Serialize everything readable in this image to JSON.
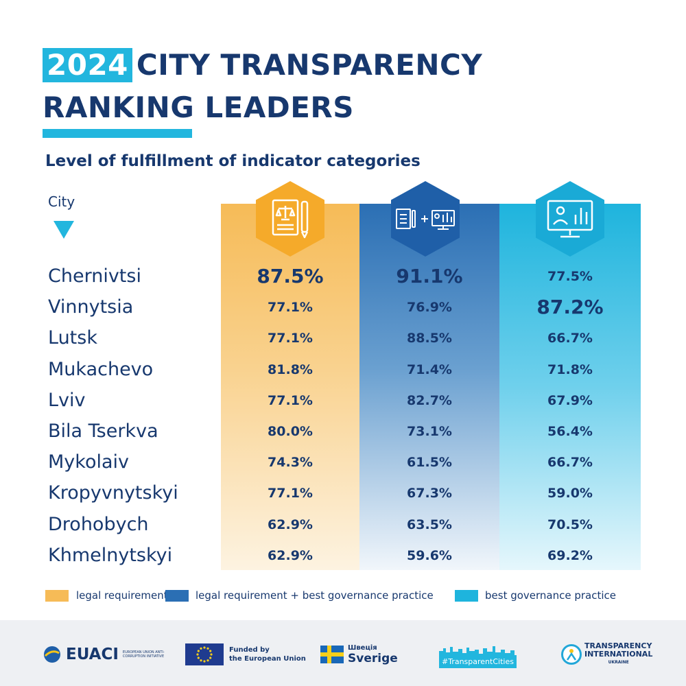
{
  "header": {
    "year": "2024",
    "title_rest": "CITY TRANSPARENCY",
    "title_line2": "RANKING LEADERS",
    "subtitle": "Level of fulfillment of indicator categories",
    "city_label": "City"
  },
  "colors": {
    "navy": "#17386e",
    "accent": "#22b6de",
    "legal_requirement": "#f6bb57",
    "legal_plus_best_practice": "#2b6fb4",
    "best_governance_practice": "#1eb4dd"
  },
  "icons": [
    "legal-document-scales-pen-icon",
    "document-plus-monitor-icon",
    "monitor-chart-icon"
  ],
  "chart_data": {
    "type": "table",
    "categories": [
      "Chernivtsi",
      "Vinnytsia",
      "Lutsk",
      "Mukachevo",
      "Lviv",
      "Bila Tserkva",
      "Mykolaiv",
      "Kropyvnytskyi",
      "Drohobych",
      "Khmelnytskyi"
    ],
    "series": [
      {
        "name": "legal requirement",
        "color": "#f6bb57",
        "values": [
          87.5,
          77.1,
          77.1,
          81.8,
          77.1,
          80.0,
          74.3,
          77.1,
          62.9,
          62.9
        ],
        "labels": [
          "87.5%",
          "77.1%",
          "77.1%",
          "81.8%",
          "77.1%",
          "80.0%",
          "74.3%",
          "77.1%",
          "62.9%",
          "62.9%"
        ]
      },
      {
        "name": "legal requirement + best governance practice",
        "color": "#2b6fb4",
        "values": [
          91.1,
          76.9,
          88.5,
          71.4,
          82.7,
          73.1,
          61.5,
          67.3,
          63.5,
          59.6
        ],
        "labels": [
          "91.1%",
          "76.9%",
          "88.5%",
          "71.4%",
          "82.7%",
          "73.1%",
          "61.5%",
          "67.3%",
          "63.5%",
          "59.6%"
        ]
      },
      {
        "name": "best governance practice",
        "color": "#1eb4dd",
        "values": [
          77.5,
          87.2,
          66.7,
          71.8,
          67.9,
          56.4,
          66.7,
          59.0,
          70.5,
          69.2
        ],
        "labels": [
          "77.5%",
          "87.2%",
          "66.7%",
          "71.8%",
          "67.9%",
          "56.4%",
          "66.7%",
          "59.0%",
          "70.5%",
          "69.2%"
        ]
      }
    ],
    "highlight": {
      "legal requirement": "Chernivtsi",
      "legal requirement + best governance practice": "Chernivtsi",
      "best governance practice": "Vinnytsia"
    },
    "legend": [
      "legal requirement",
      "legal requirement + best governance practice",
      "best governance practice"
    ],
    "legend_position": "bottom"
  },
  "footer": {
    "euaci": {
      "name": "EUACI",
      "tagline": "European Union Anti-Corruption Initiative"
    },
    "eu": {
      "line1": "Funded by",
      "line2": "the European Union"
    },
    "sweden": {
      "line1": "Швеція",
      "line2": "Sverige"
    },
    "transparent_cities": "#TransparentCities",
    "ti": {
      "line1": "TRANSPARENCY",
      "line2": "INTERNATIONAL",
      "line3": "UKRAINE"
    }
  }
}
